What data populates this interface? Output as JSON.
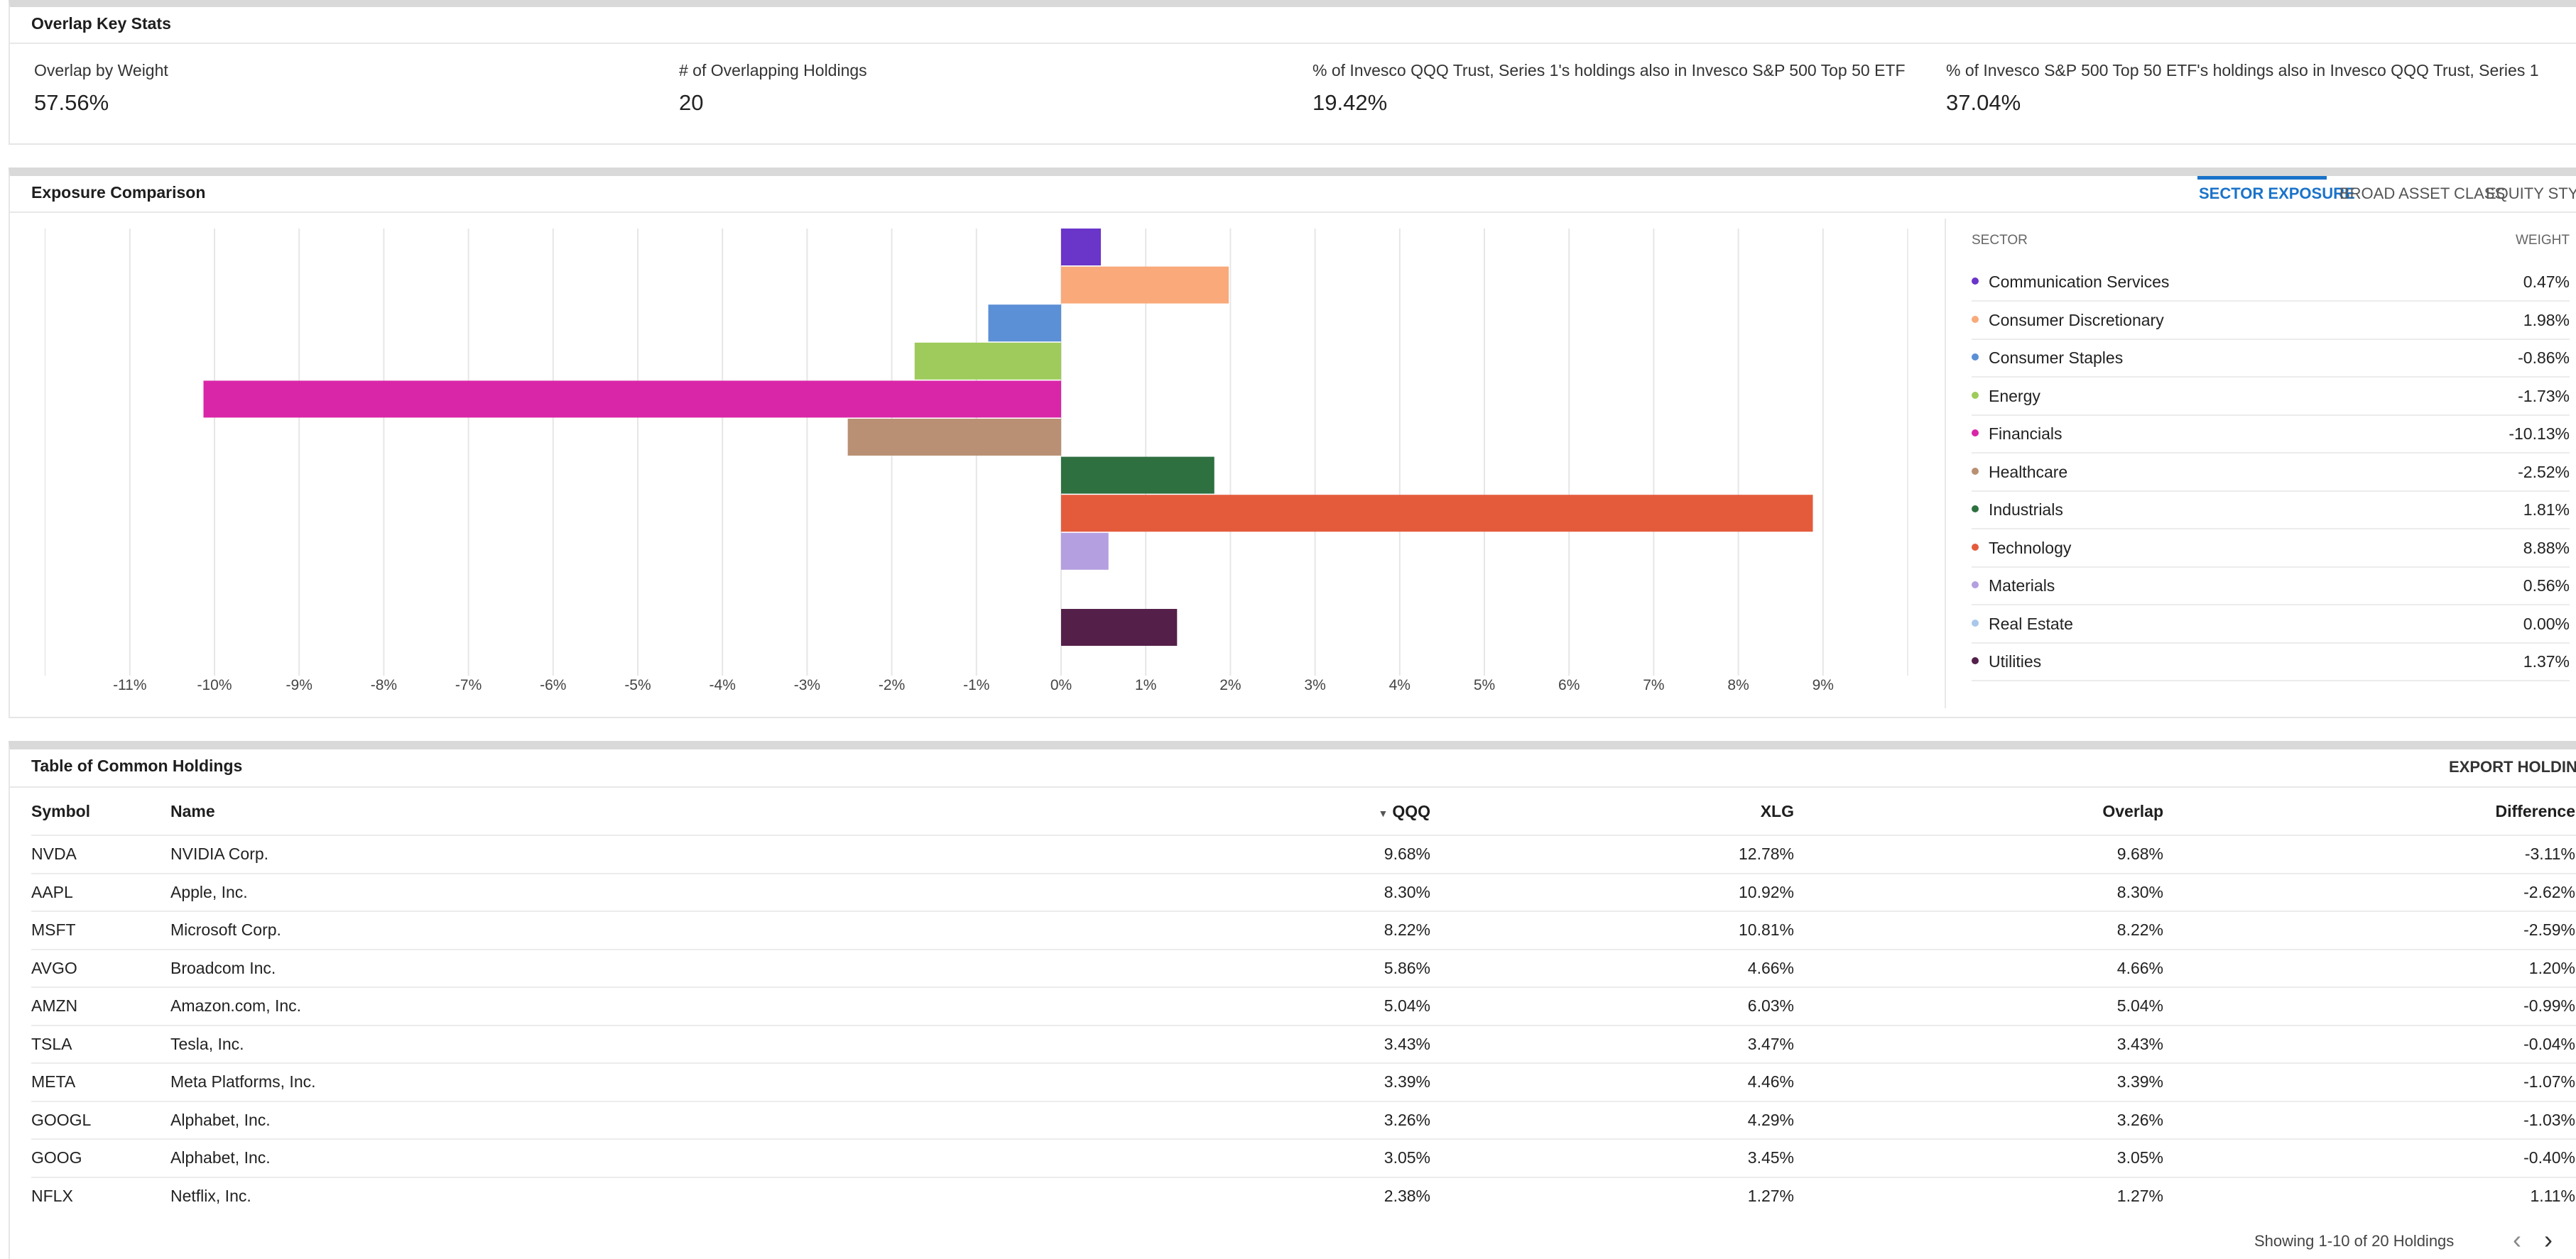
{
  "key_stats": {
    "title": "Overlap Key Stats",
    "stats": [
      {
        "label": "Overlap by Weight",
        "value": "57.56%"
      },
      {
        "label": "# of Overlapping Holdings",
        "value": "20"
      },
      {
        "label": "% of Invesco QQQ Trust, Series 1's holdings also in Invesco S&P 500 Top 50 ETF",
        "value": "19.42%"
      },
      {
        "label": "% of Invesco S&P 500 Top 50 ETF's holdings also in Invesco QQQ Trust, Series 1",
        "value": "37.04%"
      }
    ]
  },
  "exposure": {
    "title": "Exposure Comparison",
    "tabs": [
      "SECTOR EXPOSURE",
      "BROAD ASSET CLASS",
      "EQUITY STYLE"
    ],
    "active_tab": "SECTOR EXPOSURE",
    "legend_header": {
      "sector": "SECTOR",
      "weight": "WEIGHT"
    },
    "sectors": [
      {
        "name": "Communication Services",
        "weight": "0.47%",
        "color": "#6a35c9"
      },
      {
        "name": "Consumer Discretionary",
        "weight": "1.98%",
        "color": "#f9a97a"
      },
      {
        "name": "Consumer Staples",
        "weight": "-0.86%",
        "color": "#5b8fd6"
      },
      {
        "name": "Energy",
        "weight": "-1.73%",
        "color": "#9ecb5b"
      },
      {
        "name": "Financials",
        "weight": "-10.13%",
        "color": "#d926a8"
      },
      {
        "name": "Healthcare",
        "weight": "-2.52%",
        "color": "#b99074"
      },
      {
        "name": "Industrials",
        "weight": "1.81%",
        "color": "#2e7040"
      },
      {
        "name": "Technology",
        "weight": "8.88%",
        "color": "#e45b3c"
      },
      {
        "name": "Materials",
        "weight": "0.56%",
        "color": "#b49fe0"
      },
      {
        "name": "Real Estate",
        "weight": "0.00%",
        "color": "#a9c8ea"
      },
      {
        "name": "Utilities",
        "weight": "1.37%",
        "color": "#54204a"
      }
    ],
    "chart_data": {
      "type": "bar",
      "orientation": "horizontal",
      "categories": [
        "Communication Services",
        "Consumer Discretionary",
        "Consumer Staples",
        "Energy",
        "Financials",
        "Healthcare",
        "Industrials",
        "Technology",
        "Materials",
        "Real Estate",
        "Utilities"
      ],
      "values": [
        0.47,
        1.98,
        -0.86,
        -1.73,
        -10.13,
        -2.52,
        1.81,
        8.88,
        0.56,
        0.0,
        1.37
      ],
      "xlim": [
        -12,
        10
      ],
      "ticks": [
        -11,
        -10,
        -9,
        -8,
        -7,
        -6,
        -5,
        -4,
        -3,
        -2,
        -1,
        0,
        1,
        2,
        3,
        4,
        5,
        6,
        7,
        8,
        9
      ],
      "tick_labels": [
        "-11%",
        "-10%",
        "-9%",
        "-8%",
        "-7%",
        "-6%",
        "-5%",
        "-4%",
        "-3%",
        "-2%",
        "-1%",
        "0%",
        "1%",
        "2%",
        "3%",
        "4%",
        "5%",
        "6%",
        "7%",
        "8%",
        "9%"
      ],
      "colors": [
        "#6a35c9",
        "#f9a97a",
        "#5b8fd6",
        "#9ecb5b",
        "#d926a8",
        "#b99074",
        "#2e7040",
        "#e45b3c",
        "#b49fe0",
        "#a9c8ea",
        "#54204a"
      ],
      "grid": true,
      "title": "Exposure Comparison"
    }
  },
  "holdings": {
    "title": "Table of Common Holdings",
    "export_label": "EXPORT HOLDINGS",
    "columns": {
      "symbol": "Symbol",
      "name": "Name",
      "qqq": "QQQ",
      "xlg": "XLG",
      "overlap": "Overlap",
      "difference": "Difference"
    },
    "sort_indicator": "▼",
    "rows": [
      {
        "symbol": "NVDA",
        "name": "NVIDIA Corp.",
        "qqq": "9.68%",
        "xlg": "12.78%",
        "overlap": "9.68%",
        "difference": "-3.11%"
      },
      {
        "symbol": "AAPL",
        "name": "Apple, Inc.",
        "qqq": "8.30%",
        "xlg": "10.92%",
        "overlap": "8.30%",
        "difference": "-2.62%"
      },
      {
        "symbol": "MSFT",
        "name": "Microsoft Corp.",
        "qqq": "8.22%",
        "xlg": "10.81%",
        "overlap": "8.22%",
        "difference": "-2.59%"
      },
      {
        "symbol": "AVGO",
        "name": "Broadcom Inc.",
        "qqq": "5.86%",
        "xlg": "4.66%",
        "overlap": "4.66%",
        "difference": "1.20%"
      },
      {
        "symbol": "AMZN",
        "name": "Amazon.com, Inc.",
        "qqq": "5.04%",
        "xlg": "6.03%",
        "overlap": "5.04%",
        "difference": "-0.99%"
      },
      {
        "symbol": "TSLA",
        "name": "Tesla, Inc.",
        "qqq": "3.43%",
        "xlg": "3.47%",
        "overlap": "3.43%",
        "difference": "-0.04%"
      },
      {
        "symbol": "META",
        "name": "Meta Platforms, Inc.",
        "qqq": "3.39%",
        "xlg": "4.46%",
        "overlap": "3.39%",
        "difference": "-1.07%"
      },
      {
        "symbol": "GOOGL",
        "name": "Alphabet, Inc.",
        "qqq": "3.26%",
        "xlg": "4.29%",
        "overlap": "3.26%",
        "difference": "-1.03%"
      },
      {
        "symbol": "GOOG",
        "name": "Alphabet, Inc.",
        "qqq": "3.05%",
        "xlg": "3.45%",
        "overlap": "3.05%",
        "difference": "-0.40%"
      },
      {
        "symbol": "NFLX",
        "name": "Netflix, Inc.",
        "qqq": "2.38%",
        "xlg": "1.27%",
        "overlap": "1.27%",
        "difference": "1.11%"
      }
    ],
    "pagination": {
      "text": "Showing 1-10 of 20 Holdings",
      "prev": "‹",
      "next": "›"
    }
  }
}
